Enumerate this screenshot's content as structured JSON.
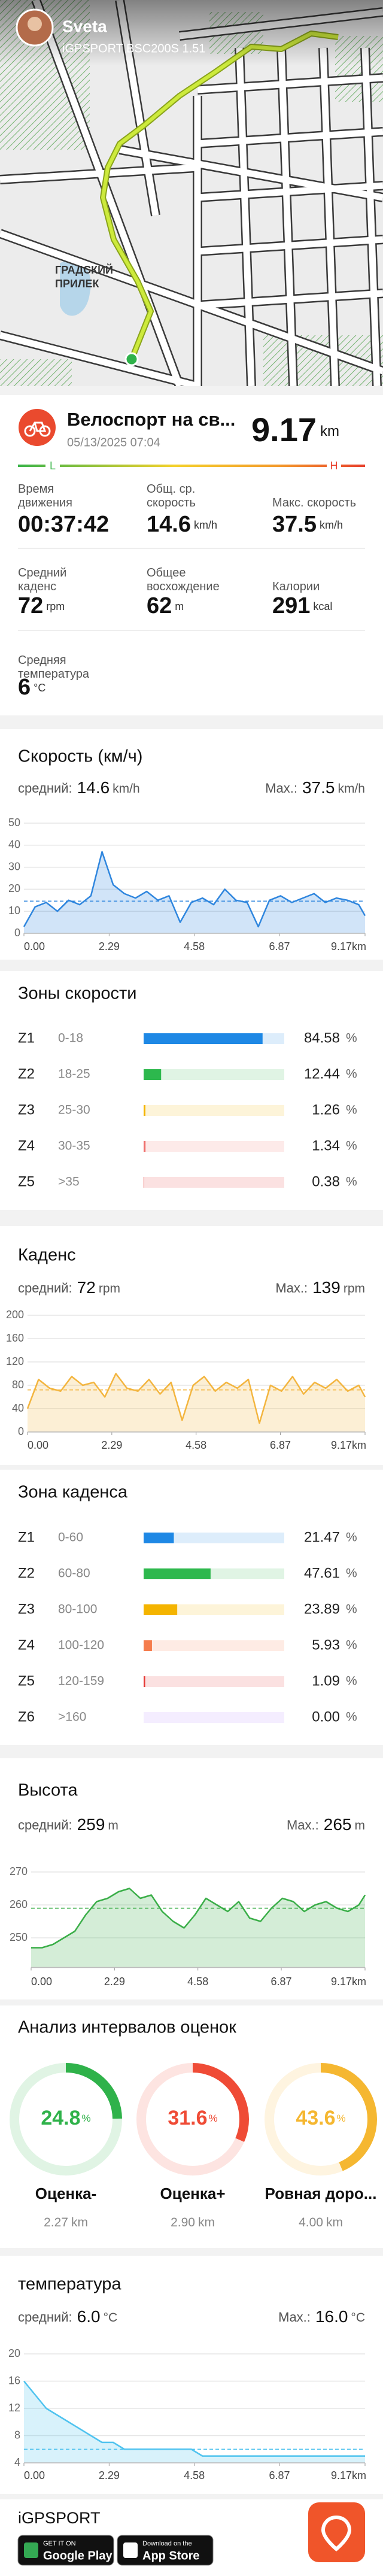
{
  "profile": {
    "name": "Sveta",
    "device": "iGPSPORT BSC200S 1.51"
  },
  "map": {
    "labels": [
      "ГРАДСКИЙ",
      "ПРИЛЕК"
    ]
  },
  "activity": {
    "title": "Велоспорт на св...",
    "date": "05/13/2025 07:04",
    "distance": 9.17,
    "distance_unit": "km",
    "scale_low": "L",
    "scale_high": "H"
  },
  "stats": [
    {
      "label": "Время движения",
      "value": "00:37:42"
    },
    {
      "label": "Общ. ср. скорость",
      "value": 14.6,
      "unit": "km/h"
    },
    {
      "label": "Макс. скорость",
      "value": 37.5,
      "unit": "km/h"
    },
    {
      "label": "Средний каденс",
      "value": 72,
      "unit": "rpm"
    },
    {
      "label": "Общее восхождение",
      "value": 62,
      "unit": "m"
    },
    {
      "label": "Калории",
      "value": 291,
      "unit": "kcal"
    },
    {
      "label": "Средняя температура",
      "value": 6,
      "unit": "°C"
    }
  ],
  "chart_data": [
    {
      "type": "area",
      "title": "Скорость (км/ч)",
      "avg_label": "средний:",
      "avg": 14.6,
      "max_label": "Max.:",
      "max": 37.5,
      "unit": "km/h",
      "color": "#2f86de",
      "grid": true,
      "xlim": [
        0,
        9.17
      ],
      "xticks": [
        {
          "value": 0,
          "label": "0.00"
        },
        2.29,
        4.58,
        6.87,
        {
          "value": 9.17,
          "label": "9.17km"
        }
      ],
      "ylim": [
        0,
        50
      ],
      "yticks": [
        0,
        10,
        20,
        30,
        40,
        50
      ],
      "x": [
        0,
        0.3,
        0.6,
        0.9,
        1.2,
        1.5,
        1.8,
        2.1,
        2.4,
        2.7,
        3,
        3.3,
        3.6,
        3.9,
        4.2,
        4.5,
        4.8,
        5.1,
        5.4,
        5.7,
        6,
        6.3,
        6.6,
        6.9,
        7.2,
        7.5,
        7.8,
        8.1,
        8.4,
        8.7,
        9,
        9.17
      ],
      "values": [
        3,
        12,
        14,
        10,
        15,
        13,
        17,
        37,
        22,
        18,
        16,
        19,
        15,
        17,
        5,
        14,
        16,
        13,
        20,
        15,
        14,
        3,
        15,
        17,
        14,
        16,
        18,
        14,
        16,
        15,
        13,
        8
      ]
    },
    {
      "type": "area",
      "title": "Каденс",
      "avg_label": "средний:",
      "avg": 72,
      "max_label": "Max.:",
      "max": 139,
      "unit": "rpm",
      "color": "#f3b53f",
      "grid": true,
      "xlim": [
        0,
        9.17
      ],
      "xticks": [
        {
          "value": 0,
          "label": "0.00"
        },
        2.29,
        4.58,
        6.87,
        {
          "value": 9.17,
          "label": "9.17km"
        }
      ],
      "ylim": [
        0,
        200
      ],
      "yticks": [
        0,
        40,
        80,
        120,
        160,
        200
      ],
      "x": [
        0,
        0.3,
        0.6,
        0.9,
        1.2,
        1.5,
        1.8,
        2.1,
        2.4,
        2.7,
        3,
        3.3,
        3.6,
        3.9,
        4.2,
        4.5,
        4.8,
        5.1,
        5.4,
        5.7,
        6,
        6.3,
        6.6,
        6.9,
        7.2,
        7.5,
        7.8,
        8.1,
        8.4,
        8.7,
        9,
        9.17
      ],
      "values": [
        40,
        90,
        75,
        70,
        95,
        80,
        85,
        60,
        100,
        75,
        70,
        90,
        65,
        85,
        20,
        80,
        95,
        70,
        85,
        75,
        90,
        15,
        80,
        70,
        95,
        65,
        85,
        75,
        90,
        70,
        80,
        60
      ]
    },
    {
      "type": "area",
      "title": "Высота",
      "avg_label": "средний:",
      "avg": 259,
      "max_label": "Max.:",
      "max": 265,
      "unit": "m",
      "color": "#3aae48",
      "grid": true,
      "xlim": [
        0,
        9.17
      ],
      "xticks": [
        {
          "value": 0,
          "label": "0.00"
        },
        2.29,
        4.58,
        6.87,
        {
          "value": 9.17,
          "label": "9.17km"
        }
      ],
      "ylim": [
        241,
        272
      ],
      "yticks": [
        250,
        260,
        270
      ],
      "x": [
        0,
        0.3,
        0.6,
        0.9,
        1.2,
        1.5,
        1.8,
        2.1,
        2.4,
        2.7,
        3,
        3.3,
        3.6,
        3.9,
        4.2,
        4.5,
        4.8,
        5.1,
        5.4,
        5.7,
        6,
        6.3,
        6.6,
        6.9,
        7.2,
        7.5,
        7.8,
        8.1,
        8.4,
        8.7,
        9,
        9.17
      ],
      "values": [
        247,
        247,
        248,
        250,
        252,
        257,
        261,
        262,
        264,
        265,
        262,
        263,
        258,
        255,
        253,
        257,
        262,
        260,
        258,
        261,
        256,
        255,
        259,
        262,
        261,
        258,
        260,
        261,
        259,
        258,
        260,
        263
      ]
    },
    {
      "type": "area",
      "title": "температура",
      "avg_label": "средний:",
      "avg": {
        "value": 6,
        "label": "6.0"
      },
      "max_label": "Max.:",
      "max": {
        "value": 16,
        "label": "16.0"
      },
      "unit": "°C",
      "color": "#4fc3ef",
      "grid": true,
      "xlim": [
        0,
        9.17
      ],
      "xticks": [
        {
          "value": 0,
          "label": "0.00"
        },
        2.29,
        4.58,
        6.87,
        {
          "value": 9.17,
          "label": "9.17km"
        }
      ],
      "ylim": [
        4,
        20
      ],
      "yticks": [
        4,
        8,
        12,
        16,
        20
      ],
      "x": [
        0,
        0.3,
        0.6,
        0.9,
        1.2,
        1.5,
        1.8,
        2.1,
        2.4,
        2.7,
        3,
        3.3,
        3.6,
        3.9,
        4.2,
        4.5,
        4.8,
        5.1,
        5.4,
        5.7,
        6,
        6.3,
        6.6,
        6.9,
        7.2,
        7.5,
        7.8,
        8.1,
        8.4,
        8.7,
        9,
        9.17
      ],
      "values": [
        16,
        14,
        12,
        11,
        10,
        9,
        8,
        7,
        7,
        6,
        6,
        6,
        6,
        6,
        6,
        6,
        5,
        5,
        5,
        5,
        5,
        5,
        5,
        5,
        5,
        5,
        5,
        5,
        5,
        5,
        5,
        5
      ]
    }
  ],
  "speed_zones": {
    "title": "Зоны скорости",
    "unit": "%",
    "zones": [
      {
        "name": "Z1",
        "range": "0-18",
        "value": 84.58,
        "color": "#1e88e5"
      },
      {
        "name": "Z2",
        "range": "18-25",
        "value": 12.44,
        "color": "#2db84d"
      },
      {
        "name": "Z3",
        "range": "25-30",
        "value": 1.26,
        "color": "#f4b400"
      },
      {
        "name": "Z4",
        "range": "30-35",
        "value": 1.34,
        "color": "#ef6f6c"
      },
      {
        "name": "Z5",
        "range": ">35",
        "value": 0.38,
        "color": "#e53935"
      }
    ]
  },
  "cadence_zones": {
    "title": "Зона каденса",
    "unit": "%",
    "zones": [
      {
        "name": "Z1",
        "range": "0-60",
        "value": 21.47,
        "color": "#1e88e5"
      },
      {
        "name": "Z2",
        "range": "60-80",
        "value": 47.61,
        "color": "#2db84d"
      },
      {
        "name": "Z3",
        "range": "80-100",
        "value": 23.89,
        "color": "#f4b400"
      },
      {
        "name": "Z4",
        "range": "100-120",
        "value": 5.93,
        "color": "#f57c4c"
      },
      {
        "name": "Z5",
        "range": "120-159",
        "value": 1.09,
        "color": "#e53935"
      },
      {
        "name": "Z6",
        "range": ">160",
        "value": 0,
        "label": "0.00",
        "color": "#b388ff"
      }
    ]
  },
  "intervals": {
    "title": "Анализ интервалов оценок",
    "unit": "%",
    "items": [
      {
        "value": 24.8,
        "name": "Оценка-",
        "distance": 2.27,
        "distance_unit": "km",
        "color": "#2fb24a"
      },
      {
        "value": 31.6,
        "name": "Оценка+",
        "distance": {
          "value": 2.9,
          "label": "2.90"
        },
        "distance_unit": "km",
        "color": "#ef4b36"
      },
      {
        "value": 43.6,
        "name": "Ровная доро...",
        "distance": {
          "value": 4,
          "label": "4.00"
        },
        "distance_unit": "km",
        "color": "#f5b731"
      }
    ]
  },
  "footer": {
    "brand": "iGPSPORT",
    "badges": [
      {
        "top": "GET IT ON",
        "name": "Google Play"
      },
      {
        "top": "Download on the",
        "name": "App Store"
      }
    ]
  }
}
